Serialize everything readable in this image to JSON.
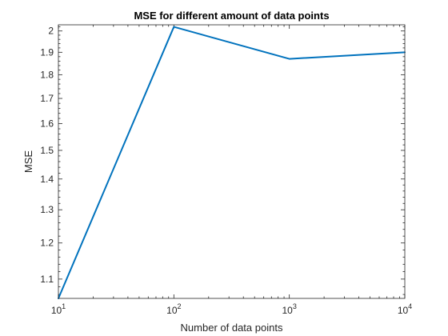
{
  "chart_data": {
    "type": "line",
    "title": "MSE for different amount of data points",
    "xlabel": "Number of data points",
    "ylabel": "MSE",
    "x_scale": "log",
    "y_scale": "log",
    "xlim": [
      10,
      10000
    ],
    "ylim": [
      1.05,
      2.03
    ],
    "x_ticks": [
      {
        "value": 10,
        "base": "10",
        "exp": "1"
      },
      {
        "value": 100,
        "base": "10",
        "exp": "2"
      },
      {
        "value": 1000,
        "base": "10",
        "exp": "3"
      },
      {
        "value": 10000,
        "base": "10",
        "exp": "4"
      }
    ],
    "y_ticks": [
      {
        "value": 1.1,
        "label": "1.1"
      },
      {
        "value": 1.2,
        "label": "1.2"
      },
      {
        "value": 1.3,
        "label": "1.3"
      },
      {
        "value": 1.4,
        "label": "1.4"
      },
      {
        "value": 1.5,
        "label": "1.5"
      },
      {
        "value": 1.6,
        "label": "1.6"
      },
      {
        "value": 1.7,
        "label": "1.7"
      },
      {
        "value": 1.8,
        "label": "1.8"
      },
      {
        "value": 1.9,
        "label": "1.9"
      },
      {
        "value": 2.0,
        "label": "2"
      }
    ],
    "series": [
      {
        "color": "#0072BD",
        "x": [
          10,
          100,
          1000,
          10000
        ],
        "y": [
          1.05,
          2.02,
          1.87,
          1.9
        ]
      }
    ],
    "grid": false,
    "box": true
  }
}
